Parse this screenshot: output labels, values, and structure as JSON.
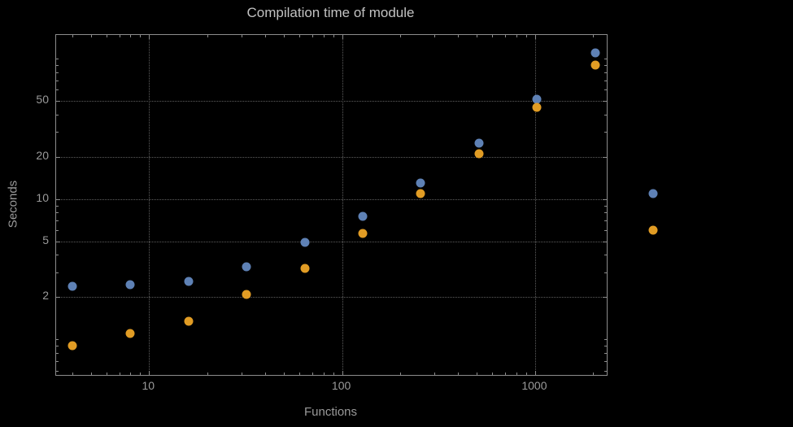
{
  "chart_data": {
    "type": "scatter",
    "title": "Compilation time of module",
    "xlabel": "Functions",
    "ylabel": "Seconds",
    "x_scale": "log",
    "y_scale": "log",
    "xlim": [
      3.3,
      2350
    ],
    "ylim": [
      0.56,
      147
    ],
    "x_ticks": [
      10,
      100,
      1000
    ],
    "y_ticks": [
      2,
      5,
      10,
      20,
      50
    ],
    "grid": true,
    "legend": "none",
    "series": [
      {
        "name": "series-1-blue",
        "color": "#5e81b5",
        "points": [
          [
            4,
            2.4
          ],
          [
            8,
            2.45
          ],
          [
            16,
            2.6
          ],
          [
            32,
            3.3
          ],
          [
            64,
            4.9
          ],
          [
            128,
            7.5
          ],
          [
            256,
            13
          ],
          [
            512,
            25
          ],
          [
            1024,
            51
          ],
          [
            2048,
            110
          ],
          [
            4096,
            11
          ]
        ]
      },
      {
        "name": "series-2-orange",
        "color": "#e19c24",
        "points": [
          [
            4,
            0.9
          ],
          [
            8,
            1.1
          ],
          [
            16,
            1.35
          ],
          [
            32,
            2.1
          ],
          [
            64,
            3.2
          ],
          [
            128,
            5.7
          ],
          [
            256,
            11
          ],
          [
            512,
            21
          ],
          [
            1024,
            45
          ],
          [
            2048,
            90
          ],
          [
            4096,
            6
          ]
        ]
      }
    ]
  },
  "colors": {
    "background": "#000000",
    "frame": "#8c8c8c",
    "grid": "#5e5e5e",
    "tick_label": "#9a9a9a",
    "title": "#c2c2c2",
    "series1": "#5e81b5",
    "series2": "#e19c24"
  }
}
